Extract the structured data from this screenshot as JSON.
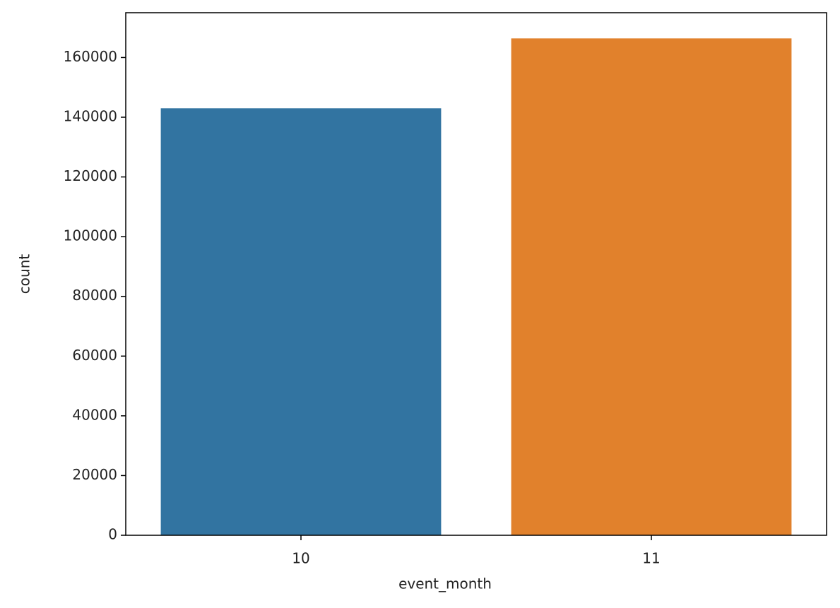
{
  "chart_data": {
    "type": "bar",
    "categories": [
      "10",
      "11"
    ],
    "values": [
      143000,
      166400
    ],
    "colors": [
      "#3274a1",
      "#e1812c"
    ],
    "xlabel": "event_month",
    "ylabel": "count",
    "ylim": [
      0,
      175000
    ],
    "yticks": [
      0,
      20000,
      40000,
      60000,
      80000,
      100000,
      120000,
      140000,
      160000
    ]
  }
}
